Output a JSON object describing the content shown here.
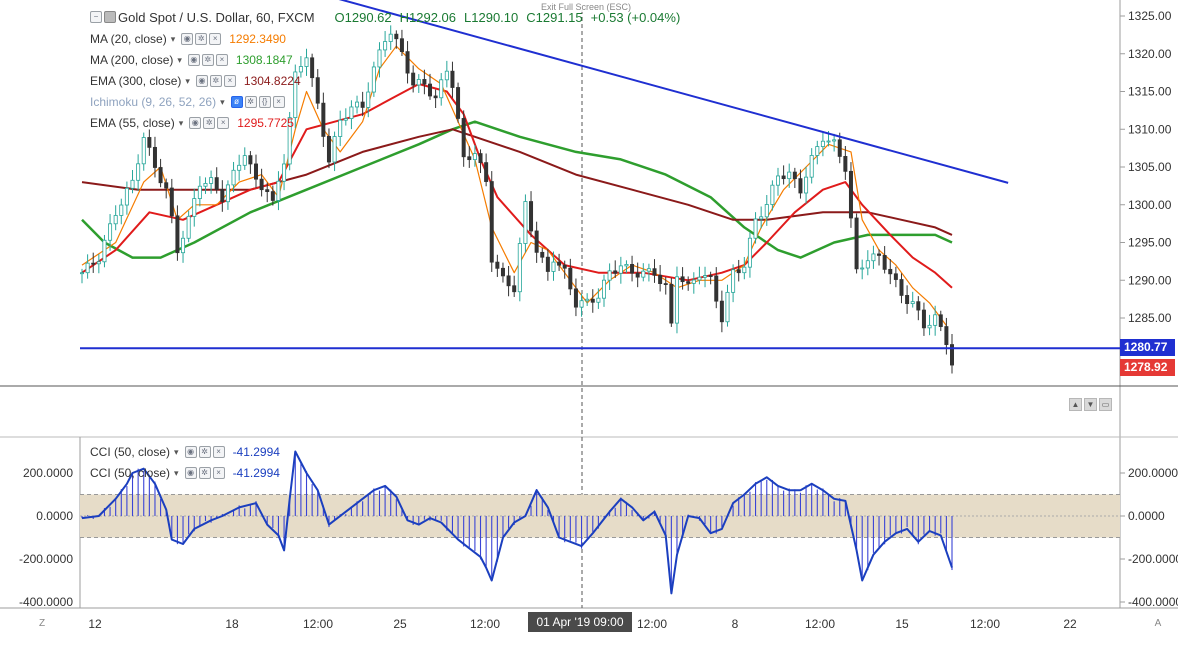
{
  "symbol": {
    "name": "Gold Spot / U.S. Dollar, 60, FXCM",
    "open": "O1290.62",
    "high": "H1292.06",
    "low": "L1290.10",
    "close": "C1291.15",
    "change": "+0.53 (+0.04%)",
    "exit_fullscreen": "Exit Full Screen (ESC)"
  },
  "legend": [
    {
      "name": "MA (20, close)",
      "value": "1292.3490",
      "color": "#f57c00"
    },
    {
      "name": "MA (200, close)",
      "value": "1308.1847",
      "color": "#2e9e2e"
    },
    {
      "name": "EMA (300, close)",
      "value": "1304.8224",
      "color": "#8b1a1a"
    },
    {
      "name": "Ichimoku (9, 26, 52, 26)",
      "value": "",
      "color": "#6e8fb5"
    },
    {
      "name": "EMA (55, close)",
      "value": "1295.7725",
      "color": "#e01b1b"
    }
  ],
  "cci_legend": [
    {
      "name": "CCI (50, close)",
      "value": "-41.2994",
      "color": "#1b3fbf"
    },
    {
      "name": "CCI (50, close)",
      "value": "-41.2994",
      "color": "#1b3fbf"
    }
  ],
  "price_tags": {
    "resistance": "1280.77",
    "last": "1278.92"
  },
  "time_tag": "01 Apr '19   09:00",
  "colors": {
    "up": "#26a69a",
    "down": "#333333",
    "trendline": "#1f2fd1",
    "cci": "#1b3fbf",
    "band": "#e6dcc8"
  },
  "chart_data": [
    {
      "type": "candlestick",
      "title": "Gold Spot / U.S. Dollar, 60, FXCM",
      "x_ticks": [
        "12",
        "18",
        "12:00",
        "25",
        "12:00",
        "01 Apr '19",
        "12:00",
        "8",
        "12:00",
        "15",
        "12:00",
        "22"
      ],
      "y_ticks": [
        "1285.00",
        "1290.00",
        "1295.00",
        "1300.00",
        "1305.00",
        "1310.00",
        "1315.00",
        "1320.00",
        "1325.00"
      ],
      "ylim": [
        1277,
        1326
      ],
      "close_path": [
        [
          0,
          1291
        ],
        [
          3,
          1293
        ],
        [
          6,
          1299
        ],
        [
          9,
          1303
        ],
        [
          11,
          1309
        ],
        [
          13,
          1305
        ],
        [
          15,
          1302
        ],
        [
          17,
          1294
        ],
        [
          19,
          1298
        ],
        [
          21,
          1303
        ],
        [
          23,
          1303
        ],
        [
          25,
          1301
        ],
        [
          27,
          1304
        ],
        [
          29,
          1307
        ],
        [
          31,
          1303
        ],
        [
          33,
          1302
        ],
        [
          34,
          1300
        ],
        [
          36,
          1306
        ],
        [
          38,
          1317
        ],
        [
          40,
          1320
        ],
        [
          42,
          1313
        ],
        [
          44,
          1306
        ],
        [
          46,
          1311
        ],
        [
          48,
          1313
        ],
        [
          50,
          1313
        ],
        [
          52,
          1318
        ],
        [
          54,
          1322
        ],
        [
          55,
          1323
        ],
        [
          57,
          1320
        ],
        [
          59,
          1316
        ],
        [
          61,
          1316
        ],
        [
          63,
          1314
        ],
        [
          65,
          1318
        ],
        [
          66,
          1316
        ],
        [
          68,
          1306
        ],
        [
          70,
          1307
        ],
        [
          72,
          1303
        ],
        [
          73,
          1293
        ],
        [
          75,
          1290
        ],
        [
          77,
          1289
        ],
        [
          79,
          1300
        ],
        [
          81,
          1294
        ],
        [
          83,
          1291
        ],
        [
          84,
          1293
        ],
        [
          86,
          1291
        ],
        [
          88,
          1287
        ],
        [
          90,
          1287
        ],
        [
          92,
          1288
        ],
        [
          94,
          1291
        ],
        [
          96,
          1292
        ],
        [
          98,
          1291
        ],
        [
          100,
          1291
        ],
        [
          102,
          1291
        ],
        [
          104,
          1289
        ],
        [
          105,
          1284
        ],
        [
          106,
          1291
        ],
        [
          108,
          1289
        ],
        [
          110,
          1291
        ],
        [
          112,
          1290
        ],
        [
          114,
          1285
        ],
        [
          116,
          1291
        ],
        [
          118,
          1292
        ],
        [
          120,
          1298
        ],
        [
          122,
          1300
        ],
        [
          124,
          1304
        ],
        [
          126,
          1304
        ],
        [
          128,
          1302
        ],
        [
          130,
          1306
        ],
        [
          132,
          1309
        ],
        [
          134,
          1308
        ],
        [
          136,
          1305
        ],
        [
          138,
          1291
        ],
        [
          140,
          1293
        ],
        [
          142,
          1293
        ],
        [
          144,
          1291
        ],
        [
          146,
          1288
        ],
        [
          148,
          1287
        ],
        [
          150,
          1284
        ],
        [
          152,
          1285
        ],
        [
          154,
          1282
        ],
        [
          155,
          1279
        ]
      ],
      "n_bars": 156,
      "ma20": [
        [
          0,
          1292
        ],
        [
          6,
          1295
        ],
        [
          11,
          1303
        ],
        [
          14,
          1305
        ],
        [
          17,
          1298
        ],
        [
          20,
          1300
        ],
        [
          24,
          1300
        ],
        [
          28,
          1303
        ],
        [
          32,
          1304
        ],
        [
          35,
          1301
        ],
        [
          38,
          1310
        ],
        [
          40,
          1315
        ],
        [
          43,
          1310
        ],
        [
          46,
          1307
        ],
        [
          50,
          1311
        ],
        [
          53,
          1318
        ],
        [
          56,
          1321
        ],
        [
          60,
          1318
        ],
        [
          64,
          1316
        ],
        [
          67,
          1311
        ],
        [
          70,
          1306
        ],
        [
          73,
          1297
        ],
        [
          77,
          1291
        ],
        [
          80,
          1295
        ],
        [
          83,
          1294
        ],
        [
          87,
          1290
        ],
        [
          90,
          1287
        ],
        [
          94,
          1290
        ],
        [
          98,
          1292
        ],
        [
          102,
          1291
        ],
        [
          106,
          1289
        ],
        [
          110,
          1290
        ],
        [
          114,
          1290
        ],
        [
          118,
          1292
        ],
        [
          121,
          1297
        ],
        [
          125,
          1302
        ],
        [
          129,
          1305
        ],
        [
          133,
          1308
        ],
        [
          137,
          1307
        ],
        [
          139,
          1298
        ],
        [
          142,
          1294
        ],
        [
          145,
          1292
        ],
        [
          148,
          1289
        ],
        [
          151,
          1287
        ],
        [
          154,
          1284
        ]
      ],
      "ema55": [
        [
          0,
          1291
        ],
        [
          6,
          1294
        ],
        [
          12,
          1299
        ],
        [
          18,
          1298
        ],
        [
          24,
          1300
        ],
        [
          30,
          1302
        ],
        [
          35,
          1303
        ],
        [
          40,
          1310
        ],
        [
          45,
          1311
        ],
        [
          50,
          1312
        ],
        [
          55,
          1314
        ],
        [
          60,
          1316
        ],
        [
          65,
          1315
        ],
        [
          68,
          1312
        ],
        [
          71,
          1306
        ],
        [
          74,
          1301
        ],
        [
          80,
          1296
        ],
        [
          86,
          1292
        ],
        [
          92,
          1291
        ],
        [
          100,
          1291
        ],
        [
          108,
          1290
        ],
        [
          114,
          1291
        ],
        [
          118,
          1292
        ],
        [
          122,
          1295
        ],
        [
          127,
          1299
        ],
        [
          132,
          1302
        ],
        [
          136,
          1303
        ],
        [
          139,
          1300
        ],
        [
          144,
          1296
        ],
        [
          148,
          1293
        ],
        [
          152,
          1291
        ],
        [
          155,
          1289
        ]
      ],
      "ema300": [
        [
          0,
          1303
        ],
        [
          10,
          1302
        ],
        [
          20,
          1302
        ],
        [
          30,
          1302
        ],
        [
          40,
          1304
        ],
        [
          50,
          1307
        ],
        [
          60,
          1309
        ],
        [
          66,
          1310
        ],
        [
          70,
          1309
        ],
        [
          78,
          1307
        ],
        [
          88,
          1304
        ],
        [
          98,
          1302
        ],
        [
          108,
          1300
        ],
        [
          116,
          1298
        ],
        [
          122,
          1298
        ],
        [
          132,
          1299
        ],
        [
          140,
          1299
        ],
        [
          146,
          1298
        ],
        [
          152,
          1297
        ],
        [
          155,
          1296
        ]
      ],
      "ma200": [
        [
          0,
          1298
        ],
        [
          4,
          1295
        ],
        [
          9,
          1293
        ],
        [
          14,
          1293
        ],
        [
          20,
          1295
        ],
        [
          30,
          1299
        ],
        [
          40,
          1302
        ],
        [
          50,
          1305
        ],
        [
          60,
          1308
        ],
        [
          66,
          1310
        ],
        [
          70,
          1311
        ],
        [
          78,
          1309
        ],
        [
          88,
          1307
        ],
        [
          96,
          1306
        ],
        [
          104,
          1304
        ],
        [
          112,
          1301
        ],
        [
          118,
          1297
        ],
        [
          124,
          1294
        ],
        [
          128,
          1293
        ],
        [
          134,
          1295
        ],
        [
          140,
          1296
        ],
        [
          146,
          1296
        ],
        [
          152,
          1296
        ],
        [
          155,
          1295
        ]
      ],
      "trendline": [
        [
          37.2,
          1329
        ],
        [
          165,
          1302.9
        ]
      ],
      "hline": 1281
    },
    {
      "type": "line",
      "title": "CCI (50, close)",
      "y_ticks": [
        "200.0000",
        "0.0000",
        "-200.0000",
        "-400.0000"
      ],
      "ylim": [
        -420,
        380
      ],
      "band": [
        -100,
        100
      ],
      "cci": [
        [
          0,
          -10
        ],
        [
          3,
          0
        ],
        [
          6,
          80
        ],
        [
          8,
          150
        ],
        [
          9,
          200
        ],
        [
          11,
          220
        ],
        [
          13,
          150
        ],
        [
          15,
          30
        ],
        [
          16,
          -110
        ],
        [
          18,
          -130
        ],
        [
          20,
          -60
        ],
        [
          23,
          -20
        ],
        [
          25,
          0
        ],
        [
          28,
          40
        ],
        [
          31,
          60
        ],
        [
          33,
          -40
        ],
        [
          35,
          -90
        ],
        [
          36,
          -160
        ],
        [
          37,
          80
        ],
        [
          38,
          300
        ],
        [
          40,
          200
        ],
        [
          42,
          120
        ],
        [
          44,
          -40
        ],
        [
          47,
          20
        ],
        [
          50,
          80
        ],
        [
          52,
          120
        ],
        [
          54,
          140
        ],
        [
          56,
          90
        ],
        [
          58,
          -20
        ],
        [
          60,
          -40
        ],
        [
          62,
          -10
        ],
        [
          64,
          -30
        ],
        [
          67,
          -110
        ],
        [
          69,
          -150
        ],
        [
          71,
          -190
        ],
        [
          72,
          -240
        ],
        [
          73,
          -300
        ],
        [
          75,
          -100
        ],
        [
          77,
          -30
        ],
        [
          79,
          0
        ],
        [
          81,
          120
        ],
        [
          83,
          40
        ],
        [
          85,
          -100
        ],
        [
          87,
          -120
        ],
        [
          89,
          -140
        ],
        [
          91,
          -80
        ],
        [
          94,
          20
        ],
        [
          96,
          80
        ],
        [
          98,
          40
        ],
        [
          100,
          -20
        ],
        [
          102,
          20
        ],
        [
          104,
          -90
        ],
        [
          105,
          -360
        ],
        [
          106,
          -180
        ],
        [
          108,
          0
        ],
        [
          110,
          -10
        ],
        [
          112,
          -80
        ],
        [
          114,
          -60
        ],
        [
          116,
          60
        ],
        [
          118,
          100
        ],
        [
          120,
          150
        ],
        [
          122,
          180
        ],
        [
          124,
          140
        ],
        [
          126,
          120
        ],
        [
          128,
          120
        ],
        [
          130,
          150
        ],
        [
          132,
          120
        ],
        [
          134,
          80
        ],
        [
          136,
          70
        ],
        [
          138,
          -160
        ],
        [
          139,
          -300
        ],
        [
          141,
          -180
        ],
        [
          143,
          -120
        ],
        [
          145,
          -80
        ],
        [
          147,
          -60
        ],
        [
          149,
          -120
        ],
        [
          151,
          -70
        ],
        [
          153,
          -90
        ],
        [
          155,
          -240
        ]
      ]
    }
  ]
}
